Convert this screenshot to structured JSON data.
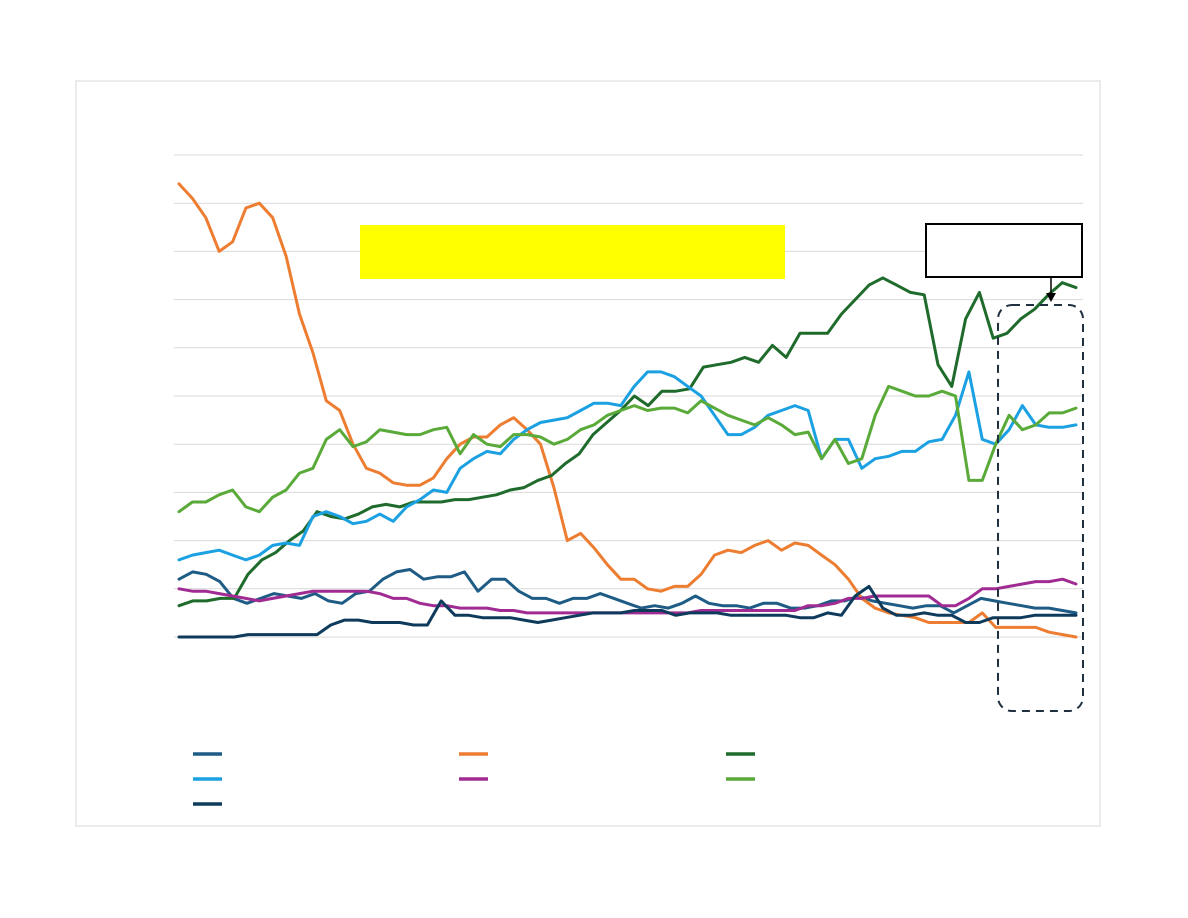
{
  "chart_data": {
    "type": "line",
    "title": "",
    "xlabel": "",
    "ylabel": "",
    "ylim": [
      0,
      100
    ],
    "grid": true,
    "legend_placement": "bottom",
    "highlight_box": {
      "text": "",
      "color": "#FFFF00"
    },
    "callout": {
      "text": ""
    },
    "series": [
      {
        "color": "#1F5C85",
        "values": [
          12,
          13.5,
          13,
          11.5,
          8,
          7,
          8,
          9,
          8.5,
          8,
          9,
          7.5,
          7,
          9,
          9.5,
          12,
          13.5,
          14,
          12,
          12.5,
          12.5,
          13.5,
          9.5,
          12,
          12,
          9.5,
          8,
          8,
          7,
          8,
          8,
          9,
          8,
          7,
          6,
          6.5,
          6,
          7,
          8.5,
          7,
          6.5,
          6.5,
          6,
          7,
          7,
          6,
          6,
          6.5,
          7.5,
          7.5,
          8.5,
          7.5,
          7,
          6.5,
          6,
          6.5,
          6.5,
          5,
          6.5,
          8,
          7.5,
          7,
          6.5,
          6,
          6,
          5.5,
          5
        ]
      },
      {
        "color": "#ED7D31",
        "values": [
          94,
          91,
          87,
          80,
          82,
          89,
          90,
          87,
          79,
          67,
          59,
          49,
          47,
          40,
          35,
          34,
          32,
          31.5,
          31.5,
          33,
          37,
          40,
          41.5,
          41.5,
          44,
          45.5,
          43,
          40,
          31,
          20,
          21.5,
          18.5,
          15,
          12,
          12,
          10,
          9.5,
          10.5,
          10.5,
          13,
          17,
          18,
          17.5,
          19,
          20,
          18,
          19.5,
          19,
          17,
          15,
          12,
          8,
          6,
          5,
          4.5,
          4,
          3,
          3,
          3,
          3,
          5,
          2,
          2,
          2,
          2,
          1,
          0.5,
          0
        ]
      },
      {
        "color": "#1E6B2C",
        "values": [
          6.5,
          7.5,
          7.5,
          8,
          8,
          13,
          16,
          17.5,
          20,
          22,
          26,
          25,
          24.5,
          25.5,
          27,
          27.5,
          27,
          28,
          28,
          28,
          28.5,
          28.5,
          29,
          29.5,
          30.5,
          31,
          32.5,
          33.5,
          36,
          38,
          42,
          44.5,
          47,
          50,
          48,
          51,
          51,
          51.5,
          56,
          56.5,
          57,
          58,
          57,
          60.5,
          58,
          63,
          63,
          63,
          67,
          70,
          73,
          74.5,
          73,
          71.5,
          71,
          56.5,
          52,
          66,
          71.5,
          62,
          63,
          66,
          68,
          71,
          73.5,
          72.5
        ]
      },
      {
        "color": "#1BA1E2",
        "values": [
          16,
          17,
          17.5,
          18,
          17,
          16,
          17,
          19,
          19.5,
          19,
          25,
          26,
          25,
          23.5,
          24,
          25.5,
          24,
          27,
          28.5,
          30.5,
          30,
          35,
          37,
          38.5,
          38,
          41,
          43,
          44.5,
          45,
          45.5,
          47,
          48.5,
          48.5,
          48,
          52,
          55,
          55,
          54,
          52,
          50,
          46,
          42,
          42,
          43.5,
          46,
          47,
          48,
          47,
          37,
          41,
          41,
          35,
          37,
          37.5,
          38.5,
          38.5,
          40.5,
          41,
          46,
          55,
          41,
          40,
          43,
          48,
          44,
          43.5,
          43.5,
          44
        ]
      },
      {
        "color": "#A02B93",
        "values": [
          10,
          9.5,
          9.5,
          9,
          8.5,
          8,
          7.5,
          8,
          8.5,
          9,
          9.5,
          9.5,
          9.5,
          9.5,
          9.5,
          9,
          8,
          8,
          7,
          6.5,
          6.5,
          6,
          6,
          6,
          5.5,
          5.5,
          5,
          5,
          5,
          5,
          5,
          5,
          5,
          5,
          5,
          5,
          5,
          5,
          5,
          5.5,
          5.5,
          5.5,
          5.5,
          5.5,
          5.5,
          5.5,
          5.5,
          6.5,
          6.5,
          7,
          8,
          8,
          8.5,
          8.5,
          8.5,
          8.5,
          8.5,
          6.5,
          6.5,
          8,
          10,
          10,
          10.5,
          11,
          11.5,
          11.5,
          12,
          11
        ]
      },
      {
        "color": "#5AAA3A",
        "values": [
          26,
          28,
          28,
          29.5,
          30.5,
          27,
          26,
          29,
          30.5,
          34,
          35,
          41,
          43,
          39.5,
          40.5,
          43,
          42.5,
          42,
          42,
          43,
          43.5,
          38,
          42,
          40,
          39.5,
          42,
          42,
          41.5,
          40,
          41,
          43,
          44,
          46,
          47,
          48,
          47,
          47.5,
          47.5,
          46.5,
          49,
          47.5,
          46,
          45,
          44,
          45.5,
          44,
          42,
          42.5,
          37,
          41,
          36,
          37,
          46,
          52,
          51,
          50,
          50,
          51,
          50,
          32.5,
          32.5,
          40,
          46,
          43,
          44,
          46.5,
          46.5,
          47.5
        ]
      },
      {
        "color": "#0E3A5C",
        "values": [
          0,
          0,
          0,
          0,
          0,
          0.5,
          0.5,
          0.5,
          0.5,
          0.5,
          0.5,
          2.5,
          3.5,
          3.5,
          3,
          3,
          3,
          2.5,
          2.5,
          7.5,
          4.5,
          4.5,
          4,
          4,
          4,
          3.5,
          3,
          3.5,
          4,
          4.5,
          5,
          5,
          5,
          5.5,
          5.5,
          5.5,
          4.5,
          5,
          5,
          5,
          4.5,
          4.5,
          4.5,
          4.5,
          4.5,
          4,
          4,
          5,
          4.5,
          8.5,
          10.5,
          6,
          4.5,
          4.5,
          5,
          4.5,
          4.5,
          3,
          3,
          4,
          4,
          4,
          4.5,
          4.5,
          4.5,
          4.5
        ]
      }
    ]
  }
}
